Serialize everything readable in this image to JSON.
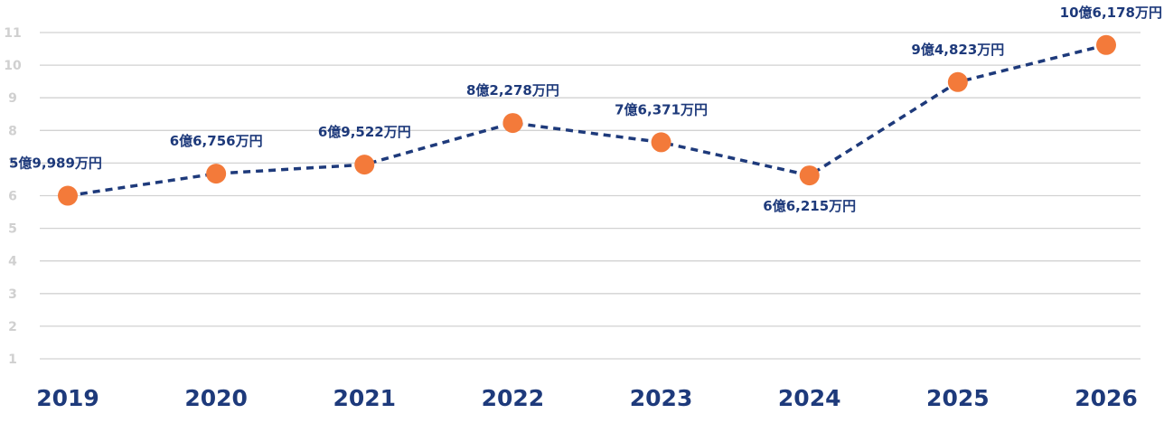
{
  "chart_data": {
    "type": "line",
    "title": "",
    "xlabel": "",
    "ylabel": "",
    "x": [
      "2019",
      "2020",
      "2021",
      "2022",
      "2023",
      "2024",
      "2025",
      "2026"
    ],
    "y_ticks": [
      "1",
      "2",
      "3",
      "4",
      "5",
      "6",
      "7",
      "8",
      "9",
      "10",
      "11"
    ],
    "ylim": [
      0.8,
      11
    ],
    "grid": true,
    "legend": "none",
    "series": [
      {
        "values": [
          5.9989,
          6.6756,
          6.9522,
          8.2278,
          7.6371,
          6.6215,
          9.4823,
          10.6178
        ],
        "labels": [
          "5億9,989万円",
          "6億6,756万円",
          "6億9,522万円",
          "8億2,278万円",
          "7億6,371万円",
          "6億6,215万円",
          "9億4,823万円",
          "10億6,178万円"
        ],
        "label_positions": [
          "above",
          "above",
          "above",
          "above",
          "above",
          "below",
          "above",
          "above"
        ]
      }
    ],
    "colors": {
      "line": "#1e3a7b",
      "marker": "#f37a3a",
      "grid": "#d2d2d2",
      "ytick": "#d0d0d0",
      "xtick": "#1e3a7b"
    }
  }
}
